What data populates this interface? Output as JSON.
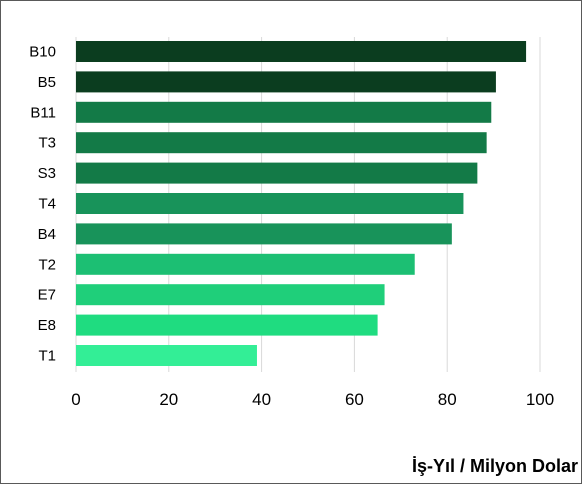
{
  "chart_data": {
    "type": "bar",
    "orientation": "horizontal",
    "categories": [
      "B10",
      "B5",
      "B11",
      "T3",
      "S3",
      "T4",
      "B4",
      "T2",
      "E7",
      "E8",
      "T1"
    ],
    "values": [
      97,
      90.5,
      89.5,
      88.5,
      86.5,
      83.5,
      81,
      73,
      66.5,
      65,
      39
    ],
    "colors": [
      "#0b3d1f",
      "#0b3d1f",
      "#137a47",
      "#137a47",
      "#137a47",
      "#18935a",
      "#18935a",
      "#1cbf73",
      "#1fcf7a",
      "#1fdc80",
      "#33ee96"
    ],
    "xlim": [
      0,
      100
    ],
    "xticks": [
      0,
      20,
      40,
      60,
      80,
      100
    ],
    "xlabel": "İş-Yıl / Milyon Dolar",
    "ylabel": "",
    "title": "",
    "grid": "vertical",
    "legend": "none"
  }
}
